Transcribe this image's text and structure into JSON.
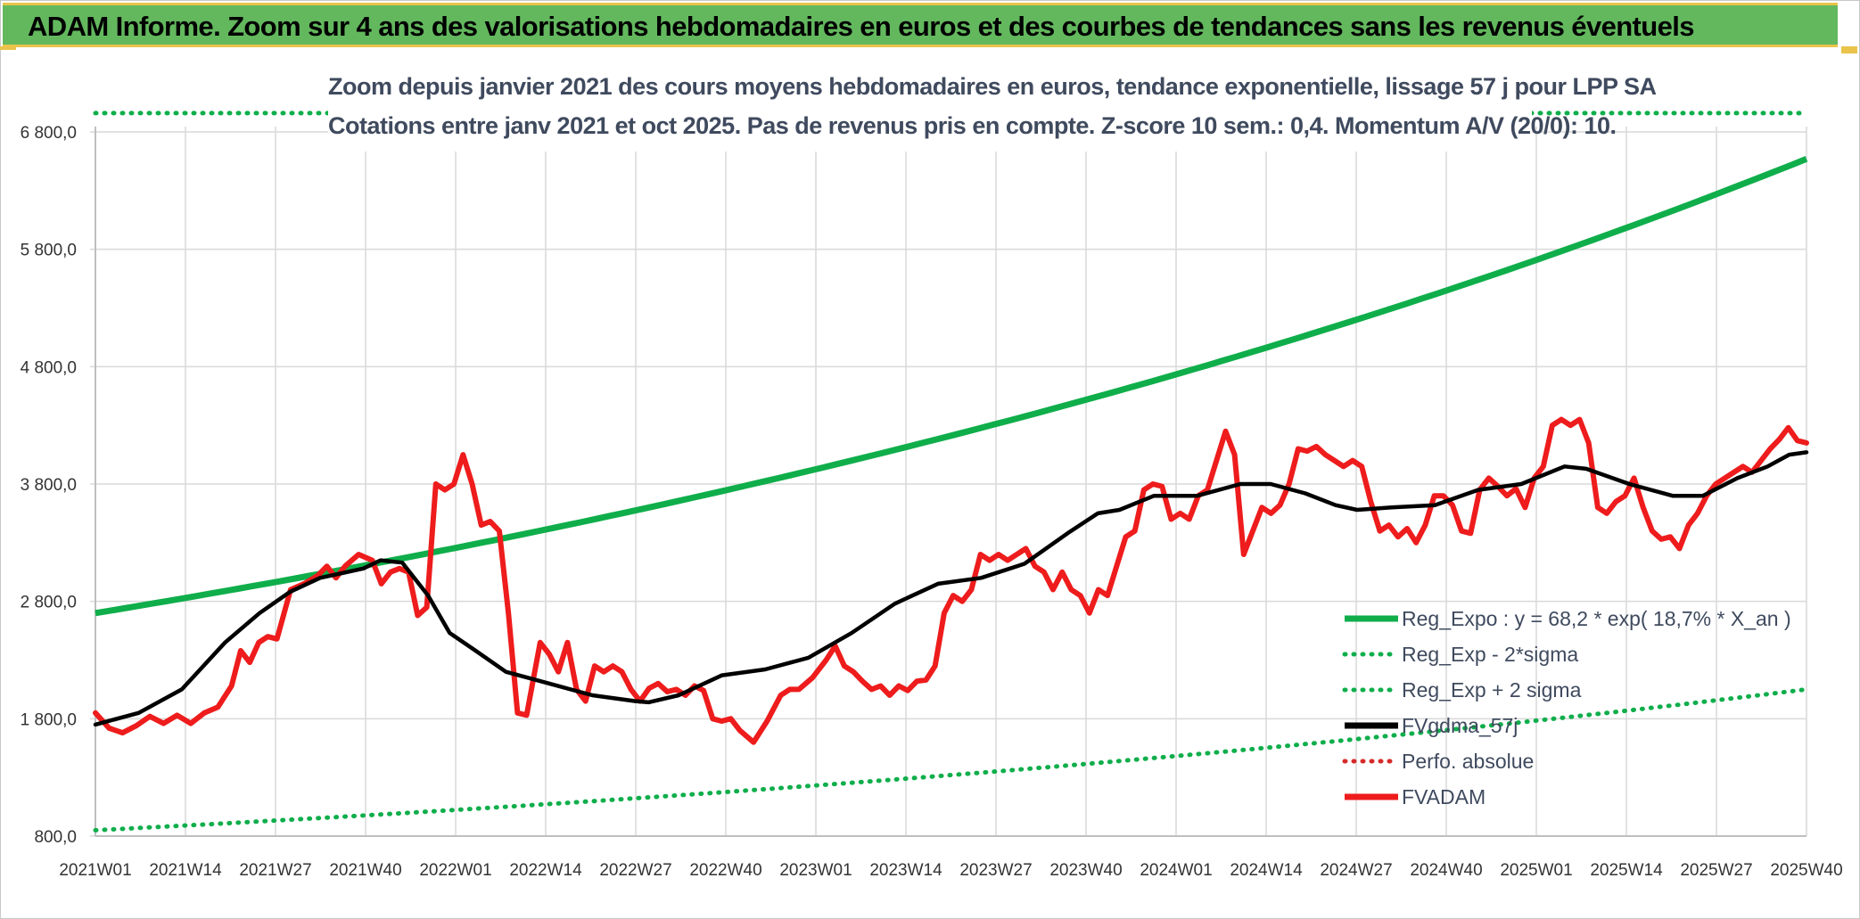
{
  "header": {
    "title": "ADAM Informe. Zoom sur 4 ans des valorisations hebdomadaires en euros et des courbes de tendances sans les revenus éventuels"
  },
  "subtitle": {
    "line1": "Zoom depuis janvier 2021 des cours moyens hebdomadaires en euros, tendance exponentielle, lissage 57 j pour LPP SA",
    "line2": "Cotations entre janv 2021 et oct 2025. Pas de revenus pris en compte. Z-score 10 sem.: 0,4. Momentum A/V (20/0): 10."
  },
  "colors": {
    "fvadam": "#ee1c1c",
    "fvgdma": "#000000",
    "reg": "#0fae4b",
    "perfo": "#d62a2a",
    "grid": "#d9d9d9"
  },
  "chart_data": {
    "type": "line",
    "ylim": [
      800,
      6800
    ],
    "yticks": [
      "6 800,0",
      "5 800,0",
      "4 800,0",
      "3 800,0",
      "2 800,0",
      "1 800,0",
      "800,0"
    ],
    "ytick_values": [
      6800,
      5800,
      4800,
      3800,
      2800,
      1800,
      800
    ],
    "xticks": [
      "2021W01",
      "2021W14",
      "2021W27",
      "2021W40",
      "2022W01",
      "2022W14",
      "2022W27",
      "2022W40",
      "2023W01",
      "2023W14",
      "2023W27",
      "2023W40",
      "2024W01",
      "2024W14",
      "2024W27",
      "2024W40",
      "2025W01",
      "2025W14",
      "2025W27",
      "2025W40"
    ],
    "x_count": 248,
    "legend": [
      {
        "label": "Reg_Expo : y = 68,2 * exp( 18,7% *  X_an )",
        "style": "solid",
        "color": "#0fae4b"
      },
      {
        "label": "Reg_Exp - 2*sigma",
        "style": "dotted",
        "color": "#0fae4b"
      },
      {
        "label": "Reg_Exp + 2 sigma",
        "style": "dotted",
        "color": "#0fae4b"
      },
      {
        "label": "FVgdma_57j",
        "style": "solid",
        "color": "#000000"
      },
      {
        "label": "Perfo. absolue",
        "style": "dotted",
        "color": "#d62a2a"
      },
      {
        "label": "FVADAM",
        "style": "solid",
        "color": "#ee1c1c"
      }
    ],
    "series": [
      {
        "name": "Reg_Expo",
        "type": "exponential",
        "start": 2700,
        "end": 6570
      },
      {
        "name": "Reg_Exp - 2*sigma",
        "type": "exponential",
        "start": 850,
        "end": 2050
      },
      {
        "name": "Reg_Exp + 2 sigma",
        "type": "constant",
        "value": 6960
      },
      {
        "name": "FVgdma_57j",
        "points": [
          [
            0,
            1750
          ],
          [
            10,
            1850
          ],
          [
            20,
            2050
          ],
          [
            30,
            2450
          ],
          [
            38,
            2700
          ],
          [
            45,
            2880
          ],
          [
            52,
            3000
          ],
          [
            62,
            3080
          ],
          [
            66,
            3150
          ],
          [
            71,
            3130
          ],
          [
            77,
            2850
          ],
          [
            82,
            2530
          ],
          [
            88,
            2380
          ],
          [
            95,
            2200
          ],
          [
            105,
            2100
          ],
          [
            115,
            2000
          ],
          [
            125,
            1950
          ],
          [
            128,
            1940
          ],
          [
            135,
            2000
          ],
          [
            145,
            2170
          ],
          [
            155,
            2220
          ],
          [
            165,
            2320
          ],
          [
            175,
            2530
          ],
          [
            185,
            2780
          ],
          [
            195,
            2950
          ],
          [
            205,
            3000
          ],
          [
            215,
            3120
          ],
          [
            225,
            3380
          ],
          [
            232,
            3550
          ],
          [
            237,
            3580
          ],
          [
            245,
            3700
          ],
          [
            255,
            3700
          ],
          [
            265,
            3800
          ],
          [
            272,
            3800
          ],
          [
            280,
            3720
          ],
          [
            287,
            3620
          ],
          [
            292,
            3580
          ],
          [
            300,
            3600
          ],
          [
            310,
            3620
          ],
          [
            320,
            3750
          ],
          [
            330,
            3800
          ],
          [
            340,
            3950
          ],
          [
            345,
            3930
          ],
          [
            355,
            3800
          ],
          [
            365,
            3700
          ],
          [
            372,
            3700
          ],
          [
            380,
            3850
          ],
          [
            387,
            3950
          ],
          [
            392,
            4050
          ],
          [
            396,
            4070
          ]
        ],
        "x_max": 396
      },
      {
        "name": "FVADAM",
        "points": [
          [
            0,
            1850
          ],
          [
            3,
            1720
          ],
          [
            6,
            1680
          ],
          [
            9,
            1740
          ],
          [
            12,
            1820
          ],
          [
            15,
            1760
          ],
          [
            18,
            1830
          ],
          [
            21,
            1760
          ],
          [
            24,
            1850
          ],
          [
            27,
            1900
          ],
          [
            30,
            2080
          ],
          [
            32,
            2380
          ],
          [
            34,
            2280
          ],
          [
            36,
            2450
          ],
          [
            38,
            2500
          ],
          [
            40,
            2480
          ],
          [
            43,
            2900
          ],
          [
            46,
            2950
          ],
          [
            49,
            3020
          ],
          [
            51,
            3100
          ],
          [
            53,
            3000
          ],
          [
            55,
            3100
          ],
          [
            58,
            3200
          ],
          [
            61,
            3150
          ],
          [
            63,
            2950
          ],
          [
            65,
            3050
          ],
          [
            67,
            3080
          ],
          [
            69,
            3050
          ],
          [
            71,
            2680
          ],
          [
            73,
            2750
          ],
          [
            75,
            3800
          ],
          [
            77,
            3750
          ],
          [
            79,
            3800
          ],
          [
            81,
            4050
          ],
          [
            83,
            3800
          ],
          [
            85,
            3450
          ],
          [
            87,
            3480
          ],
          [
            89,
            3400
          ],
          [
            91,
            2700
          ],
          [
            93,
            1850
          ],
          [
            95,
            1830
          ],
          [
            98,
            2450
          ],
          [
            100,
            2350
          ],
          [
            102,
            2200
          ],
          [
            104,
            2450
          ],
          [
            106,
            2050
          ],
          [
            108,
            1950
          ],
          [
            110,
            2250
          ],
          [
            112,
            2200
          ],
          [
            114,
            2250
          ],
          [
            116,
            2200
          ],
          [
            118,
            2050
          ],
          [
            120,
            1950
          ],
          [
            122,
            2060
          ],
          [
            124,
            2100
          ],
          [
            126,
            2030
          ],
          [
            128,
            2050
          ],
          [
            130,
            2000
          ],
          [
            132,
            2080
          ],
          [
            134,
            2040
          ],
          [
            136,
            1800
          ],
          [
            138,
            1780
          ],
          [
            140,
            1800
          ],
          [
            142,
            1700
          ],
          [
            145,
            1600
          ],
          [
            148,
            1780
          ],
          [
            151,
            2000
          ],
          [
            153,
            2050
          ],
          [
            155,
            2050
          ],
          [
            158,
            2150
          ],
          [
            161,
            2300
          ],
          [
            163,
            2420
          ],
          [
            165,
            2250
          ],
          [
            167,
            2200
          ],
          [
            169,
            2120
          ],
          [
            171,
            2050
          ],
          [
            173,
            2080
          ],
          [
            175,
            2000
          ],
          [
            177,
            2080
          ],
          [
            179,
            2040
          ],
          [
            181,
            2120
          ],
          [
            183,
            2130
          ],
          [
            185,
            2250
          ],
          [
            187,
            2700
          ],
          [
            189,
            2850
          ],
          [
            191,
            2800
          ],
          [
            193,
            2900
          ],
          [
            195,
            3200
          ],
          [
            197,
            3150
          ],
          [
            199,
            3200
          ],
          [
            201,
            3150
          ],
          [
            203,
            3200
          ],
          [
            205,
            3250
          ],
          [
            207,
            3100
          ],
          [
            209,
            3050
          ],
          [
            211,
            2900
          ],
          [
            213,
            3050
          ],
          [
            215,
            2900
          ],
          [
            217,
            2850
          ],
          [
            219,
            2700
          ],
          [
            221,
            2900
          ],
          [
            223,
            2850
          ],
          [
            225,
            3100
          ],
          [
            227,
            3350
          ],
          [
            229,
            3400
          ],
          [
            231,
            3750
          ],
          [
            233,
            3800
          ],
          [
            235,
            3780
          ],
          [
            237,
            3500
          ],
          [
            239,
            3550
          ],
          [
            241,
            3500
          ],
          [
            243,
            3700
          ],
          [
            245,
            3750
          ],
          [
            247,
            4000
          ],
          [
            249,
            4250
          ],
          [
            251,
            4050
          ],
          [
            253,
            3200
          ],
          [
            255,
            3400
          ],
          [
            257,
            3600
          ],
          [
            259,
            3550
          ],
          [
            261,
            3620
          ],
          [
            263,
            3800
          ],
          [
            265,
            4100
          ],
          [
            267,
            4080
          ],
          [
            269,
            4120
          ],
          [
            271,
            4050
          ],
          [
            273,
            4000
          ],
          [
            275,
            3950
          ],
          [
            277,
            4000
          ],
          [
            279,
            3950
          ],
          [
            281,
            3650
          ],
          [
            283,
            3400
          ],
          [
            285,
            3450
          ],
          [
            287,
            3350
          ],
          [
            289,
            3420
          ],
          [
            291,
            3300
          ],
          [
            293,
            3450
          ],
          [
            295,
            3700
          ],
          [
            297,
            3700
          ],
          [
            299,
            3620
          ],
          [
            301,
            3400
          ],
          [
            303,
            3380
          ],
          [
            305,
            3750
          ],
          [
            307,
            3850
          ],
          [
            309,
            3780
          ],
          [
            311,
            3700
          ],
          [
            313,
            3760
          ],
          [
            315,
            3600
          ],
          [
            317,
            3850
          ],
          [
            319,
            3950
          ],
          [
            321,
            4300
          ],
          [
            323,
            4350
          ],
          [
            325,
            4300
          ],
          [
            327,
            4350
          ],
          [
            329,
            4150
          ],
          [
            331,
            3600
          ],
          [
            333,
            3550
          ],
          [
            335,
            3650
          ],
          [
            337,
            3700
          ],
          [
            339,
            3850
          ],
          [
            341,
            3600
          ],
          [
            343,
            3400
          ],
          [
            345,
            3330
          ],
          [
            347,
            3350
          ],
          [
            349,
            3250
          ],
          [
            351,
            3450
          ],
          [
            353,
            3550
          ],
          [
            355,
            3700
          ],
          [
            357,
            3800
          ],
          [
            359,
            3850
          ],
          [
            361,
            3900
          ],
          [
            363,
            3950
          ],
          [
            365,
            3900
          ],
          [
            367,
            4000
          ],
          [
            369,
            4100
          ],
          [
            371,
            4180
          ],
          [
            373,
            4280
          ],
          [
            375,
            4170
          ],
          [
            377,
            4150
          ]
        ],
        "x_max": 377
      }
    ]
  }
}
